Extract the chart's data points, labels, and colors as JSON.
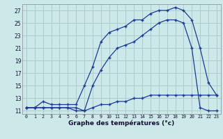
{
  "xlabel": "Graphe des températures (°c)",
  "background_color": "#cce8e8",
  "grid_color": "#aacccc",
  "line_color": "#1a3a9a",
  "xlim": [
    -0.5,
    23.5
  ],
  "ylim": [
    10.5,
    28.0
  ],
  "xticks": [
    0,
    1,
    2,
    3,
    4,
    5,
    6,
    7,
    8,
    9,
    10,
    11,
    12,
    13,
    14,
    15,
    16,
    17,
    18,
    19,
    20,
    21,
    22,
    23
  ],
  "yticks": [
    11,
    13,
    15,
    17,
    19,
    21,
    23,
    25,
    27
  ],
  "line1_x": [
    0,
    1,
    2,
    3,
    4,
    5,
    6,
    7,
    8,
    9,
    10,
    11,
    12,
    13,
    14,
    15,
    16,
    17,
    18,
    19,
    20,
    21,
    22,
    23
  ],
  "line1_y": [
    11.5,
    11.5,
    12.5,
    12.0,
    12.0,
    12.0,
    12.0,
    15.0,
    18.0,
    22.0,
    23.5,
    24.0,
    24.5,
    25.5,
    25.5,
    26.5,
    27.0,
    27.0,
    27.5,
    27.0,
    25.5,
    21.0,
    15.5,
    13.5
  ],
  "line2_x": [
    0,
    1,
    2,
    3,
    4,
    5,
    6,
    7,
    8,
    9,
    10,
    11,
    12,
    13,
    14,
    15,
    16,
    17,
    18,
    19,
    20,
    21,
    22,
    23
  ],
  "line2_y": [
    11.5,
    11.5,
    11.5,
    11.5,
    11.5,
    11.5,
    11.0,
    11.0,
    15.0,
    17.5,
    19.5,
    21.0,
    21.5,
    22.0,
    23.0,
    24.0,
    25.0,
    25.5,
    25.5,
    25.0,
    21.0,
    11.5,
    11.0,
    11.0
  ],
  "line3_x": [
    0,
    1,
    2,
    3,
    4,
    5,
    6,
    7,
    8,
    9,
    10,
    11,
    12,
    13,
    14,
    15,
    16,
    17,
    18,
    19,
    20,
    21,
    22,
    23
  ],
  "line3_y": [
    11.5,
    11.5,
    11.5,
    11.5,
    11.5,
    11.5,
    11.5,
    11.0,
    11.5,
    12.0,
    12.0,
    12.5,
    12.5,
    13.0,
    13.0,
    13.5,
    13.5,
    13.5,
    13.5,
    13.5,
    13.5,
    13.5,
    13.5,
    13.5
  ],
  "xtick_fontsize": 4.8,
  "ytick_fontsize": 5.5,
  "xlabel_fontsize": 6.5
}
